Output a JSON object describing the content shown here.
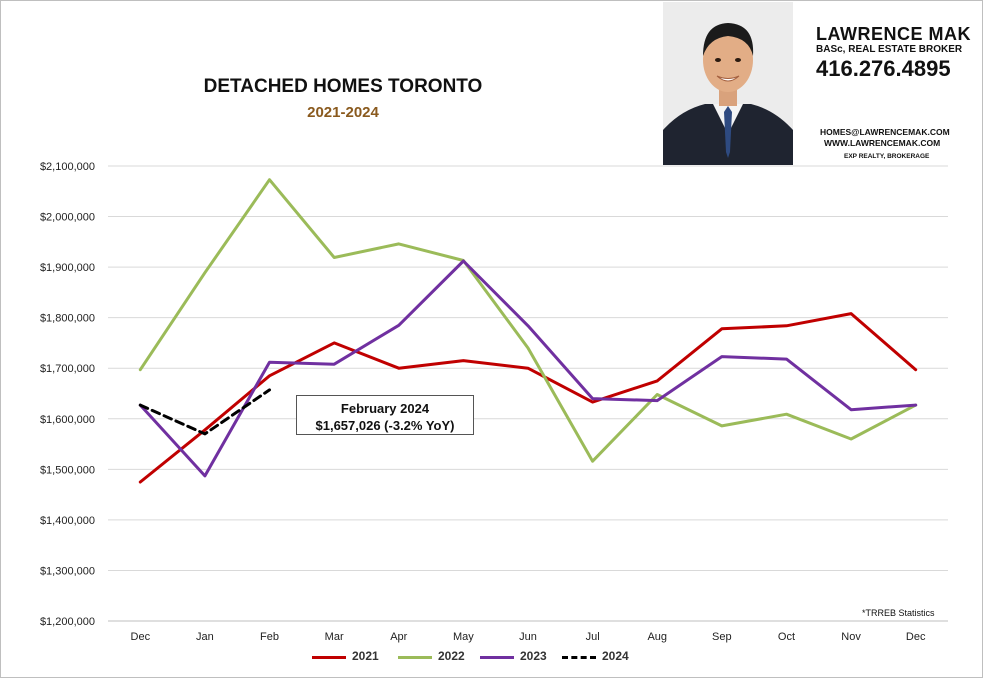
{
  "title": "DETACHED HOMES TORONTO",
  "subtitle": "2021-2024",
  "agent": {
    "name": "LAWRENCE MAK",
    "role": "BASc, REAL ESTATE BROKER",
    "phone": "416.276.4895",
    "email": "HOMES@LAWRENCEMAK.COM",
    "website": "WWW.LAWRENCEMAK.COM",
    "brokerage": "EXP REALTY, BROKERAGE"
  },
  "callout": {
    "line1": "February 2024",
    "line2": "$1,657,026  (-3.2%  YoY)"
  },
  "source_note": "*TRREB Statistics",
  "chart_data": {
    "type": "line",
    "title": "DETACHED HOMES TORONTO",
    "subtitle": "2021-2024",
    "xlabel": "",
    "ylabel": "",
    "ylim": [
      1200000,
      2100000
    ],
    "yticks": [
      1200000,
      1300000,
      1400000,
      1500000,
      1600000,
      1700000,
      1800000,
      1900000,
      2000000,
      2100000
    ],
    "ytick_labels": [
      "$1,200,000",
      "$1,300,000",
      "$1,400,000",
      "$1,500,000",
      "$1,600,000",
      "$1,700,000",
      "$1,800,000",
      "$1,900,000",
      "$2,000,000",
      "$2,100,000"
    ],
    "categories": [
      "Dec",
      "Jan",
      "Feb",
      "Mar",
      "Apr",
      "May",
      "Jun",
      "Jul",
      "Aug",
      "Sep",
      "Oct",
      "Nov",
      "Dec"
    ],
    "grid": true,
    "legend": "bottom",
    "series": [
      {
        "name": "2021",
        "color": "#c00000",
        "dash": false,
        "values": [
          1475000,
          1578000,
          1685000,
          1750000,
          1700000,
          1715000,
          1700000,
          1633000,
          1675000,
          1778000,
          1784000,
          1808000,
          1697000
        ]
      },
      {
        "name": "2022",
        "color": "#9bbb59",
        "dash": false,
        "values": [
          1697000,
          1889000,
          2073000,
          1919000,
          1946000,
          1913000,
          1740000,
          1516000,
          1648000,
          1586000,
          1609000,
          1560000,
          1627000
        ]
      },
      {
        "name": "2023",
        "color": "#7030a0",
        "dash": false,
        "values": [
          1627000,
          1487000,
          1712000,
          1708000,
          1785000,
          1912000,
          1784000,
          1640000,
          1636000,
          1723000,
          1718000,
          1618000,
          1627000
        ]
      },
      {
        "name": "2024",
        "color": "#000000",
        "dash": true,
        "values": [
          1627000,
          1570000,
          1657026,
          null,
          null,
          null,
          null,
          null,
          null,
          null,
          null,
          null,
          null
        ]
      }
    ]
  }
}
